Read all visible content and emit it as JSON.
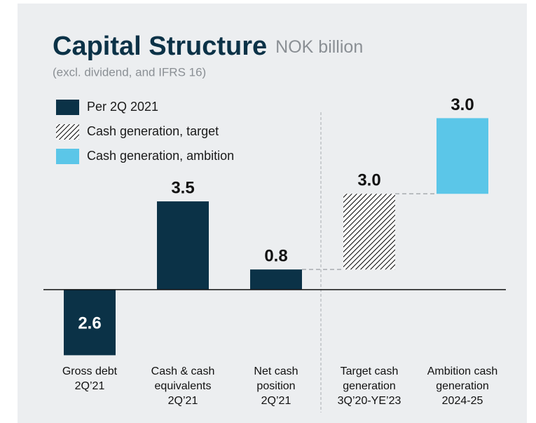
{
  "chart_data": {
    "type": "bar",
    "title": "Capital Structure",
    "unit": "NOK billion",
    "subtitle": "(excl. dividend, and IFRS 16)",
    "categories": [
      [
        "Gross debt",
        "2Q’21"
      ],
      [
        "Cash & cash",
        "equivalents",
        "2Q’21"
      ],
      [
        "Net cash",
        "position",
        "2Q’21"
      ],
      [
        "Target cash",
        "generation",
        "3Q’20-YE’23"
      ],
      [
        "Ambition cash",
        "generation",
        "2024-25"
      ]
    ],
    "series": [
      {
        "name": "Per 2Q 2021",
        "color": "#0b3247",
        "values": [
          -2.6,
          3.5,
          0.8,
          null,
          null
        ],
        "value_labels": [
          "2.6",
          "3.5",
          "0.8",
          null,
          null
        ]
      },
      {
        "name": "Cash generation, target",
        "color": "#000000",
        "pattern": "hatch",
        "values": [
          null,
          null,
          null,
          3.0,
          null
        ],
        "value_labels": [
          null,
          null,
          null,
          "3.0",
          null
        ]
      },
      {
        "name": "Cash generation, ambition",
        "color": "#5bc6e8",
        "values": [
          null,
          null,
          null,
          null,
          3.0
        ],
        "value_labels": [
          null,
          null,
          null,
          null,
          "3.0"
        ]
      }
    ],
    "ylim": [
      -2.7,
      6.2
    ]
  }
}
